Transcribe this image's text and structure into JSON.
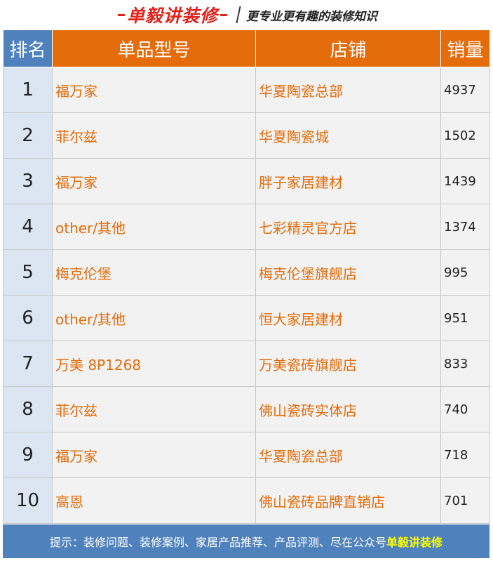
{
  "header": {
    "brand": "单毅讲装修",
    "slogan": "更专业更有趣的装修知识"
  },
  "table": {
    "columns": [
      "排名",
      "单品型号",
      "店铺",
      "销量"
    ],
    "rows": [
      {
        "rank": "1",
        "model": "福万家",
        "shop": "华夏陶瓷总部",
        "sales": "4937"
      },
      {
        "rank": "2",
        "model": "菲尔兹",
        "shop": "华夏陶瓷城",
        "sales": "1502"
      },
      {
        "rank": "3",
        "model": "福万家",
        "shop": "胖子家居建材",
        "sales": "1439"
      },
      {
        "rank": "4",
        "model": "other/其他",
        "shop": "七彩精灵官方店",
        "sales": "1374"
      },
      {
        "rank": "5",
        "model": "梅克伦堡",
        "shop": "梅克伦堡旗舰店",
        "sales": "995"
      },
      {
        "rank": "6",
        "model": "other/其他",
        "shop": "恒大家居建材",
        "sales": "951"
      },
      {
        "rank": "7",
        "model": "万美 8P1268",
        "shop": "万美瓷砖旗舰店",
        "sales": "833"
      },
      {
        "rank": "8",
        "model": "菲尔兹",
        "shop": "佛山瓷砖实体店",
        "sales": "740"
      },
      {
        "rank": "9",
        "model": "福万家",
        "shop": "华夏陶瓷总部",
        "sales": "718"
      },
      {
        "rank": "10",
        "model": "高恩",
        "shop": "佛山瓷砖品牌直销店",
        "sales": "701"
      }
    ]
  },
  "footer": {
    "tip": "提示：装修问题、装修案例、家居产品推荐、产品评测、尽在公众号",
    "highlight": "单毅讲装修"
  },
  "colors": {
    "rank_header": "#4f81bd",
    "header": "#e46c0a",
    "text_orange": "#e46c0a",
    "footer": "#4f81bd",
    "highlight": "#ffff00",
    "brand": "#e2231a"
  }
}
